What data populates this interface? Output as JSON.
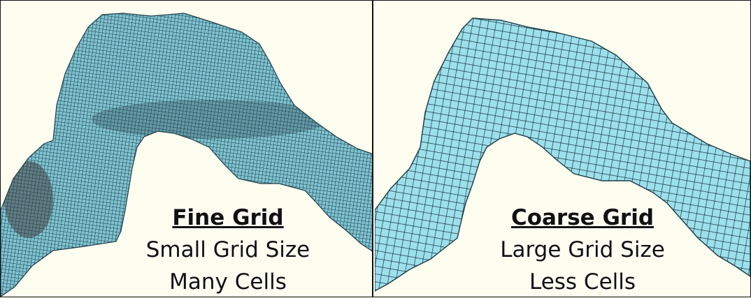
{
  "panels": {
    "fine": {
      "title": "Fine Grid",
      "line1": "Small Grid Size",
      "line2": "Many Cells"
    },
    "coarse": {
      "title": "Coarse Grid",
      "line1": "Large Grid Size",
      "line2": "Less Cells"
    }
  },
  "colors": {
    "background": "#fdfdf0",
    "mesh_fill": "#8fd3e0",
    "mesh_lines": "#1d3b44",
    "border": "#111111"
  }
}
